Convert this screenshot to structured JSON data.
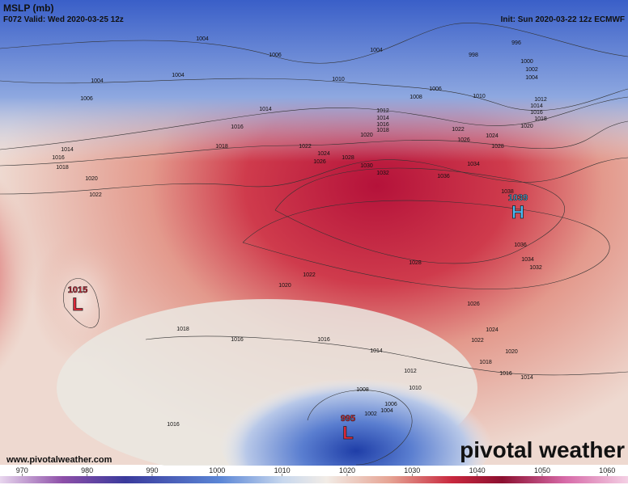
{
  "header": {
    "title": "MSLP (mb)",
    "valid": "F072 Valid: Wed 2020-03-25 12z",
    "init": "Init: Sun 2020-03-22 12z ECMWF"
  },
  "pressure_centers": [
    {
      "value": 1039,
      "symbol": "H"
    },
    {
      "value": 1015,
      "symbol": "L"
    },
    {
      "value": 995,
      "symbol": "L"
    }
  ],
  "contour_labels": [
    1004,
    1006,
    1004,
    1004,
    1006,
    1010,
    1008,
    1006,
    1004,
    996,
    998,
    1000,
    1002,
    1004,
    1010,
    1012,
    1014,
    1016,
    1018,
    1020,
    1014,
    1016,
    1018,
    1012,
    1014,
    1016,
    1018,
    1020,
    1022,
    1024,
    1026,
    1028,
    1014,
    1016,
    1018,
    1020,
    1022,
    1022,
    1024,
    1026,
    1028,
    1030,
    1032,
    1036,
    1034,
    1038,
    1036,
    1034,
    1032,
    1028,
    1022,
    1020,
    1026,
    1024,
    1022,
    1020,
    1018,
    1016,
    1014,
    1018,
    1016,
    1016,
    1014,
    1012,
    1010,
    1008,
    1006,
    1004,
    1002,
    1016
  ],
  "website": "www.pivotalweather.com",
  "logo": "pivotal weather",
  "colorbar": {
    "lim": [
      966.6,
      1063.2
    ],
    "ticks": [
      970,
      980,
      990,
      1000,
      1010,
      1020,
      1030,
      1040,
      1050,
      1060
    ]
  }
}
